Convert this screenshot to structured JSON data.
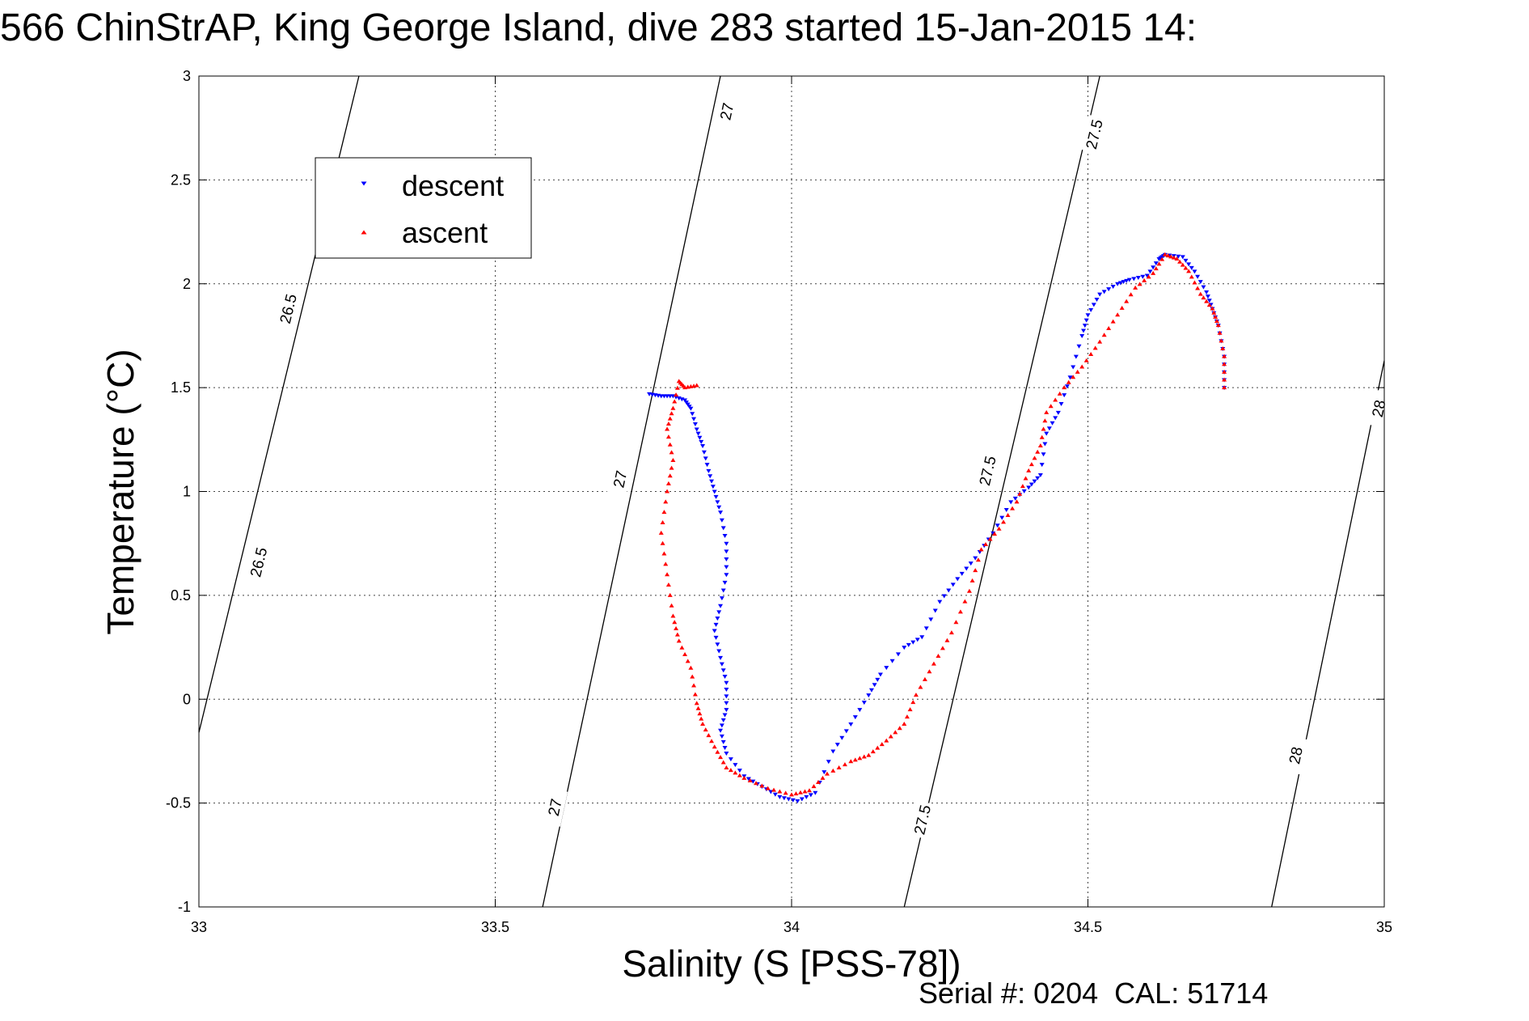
{
  "chart_data": {
    "type": "scatter",
    "title": "566 ChinStrAP, King George Island, dive 283 started 15-Jan-2015 14:",
    "xlabel": "Salinity (S [PSS-78])",
    "ylabel": "Temperature (°C)",
    "xlim": [
      33,
      35
    ],
    "ylim": [
      -1,
      3
    ],
    "x_ticks": [
      33,
      33.5,
      34,
      34.5,
      35
    ],
    "y_ticks": [
      -1,
      -0.5,
      0,
      0.5,
      1,
      1.5,
      2,
      2.5,
      3
    ],
    "x_tick_labels": [
      "33",
      "33.5",
      "34",
      "34.5",
      "35"
    ],
    "y_tick_labels": [
      "-1",
      "-0.5",
      "0",
      "0.5",
      "1",
      "1.5",
      "2",
      "2.5",
      "3"
    ],
    "grid": true,
    "legend_position": "top-left",
    "footer": "Serial #: 0204  CAL: 51714",
    "series": [
      {
        "name": "descent",
        "color": "#0000ff",
        "marker": "triangle-down",
        "points": [
          [
            33.76,
            1.47
          ],
          [
            33.78,
            1.46
          ],
          [
            33.8,
            1.46
          ],
          [
            33.82,
            1.44
          ],
          [
            33.83,
            1.4
          ],
          [
            33.84,
            1.3
          ],
          [
            33.85,
            1.22
          ],
          [
            33.86,
            1.1
          ],
          [
            33.87,
            1.0
          ],
          [
            33.88,
            0.9
          ],
          [
            33.89,
            0.75
          ],
          [
            33.89,
            0.6
          ],
          [
            33.88,
            0.45
          ],
          [
            33.87,
            0.33
          ],
          [
            33.88,
            0.2
          ],
          [
            33.89,
            0.08
          ],
          [
            33.89,
            -0.05
          ],
          [
            33.88,
            -0.15
          ],
          [
            33.89,
            -0.26
          ],
          [
            33.92,
            -0.37
          ],
          [
            33.95,
            -0.42
          ],
          [
            33.98,
            -0.47
          ],
          [
            34.01,
            -0.49
          ],
          [
            34.04,
            -0.45
          ],
          [
            34.07,
            -0.25
          ],
          [
            34.1,
            -0.12
          ],
          [
            34.13,
            0.02
          ],
          [
            34.15,
            0.12
          ],
          [
            34.19,
            0.25
          ],
          [
            34.22,
            0.3
          ],
          [
            34.25,
            0.47
          ],
          [
            34.28,
            0.58
          ],
          [
            34.31,
            0.68
          ],
          [
            34.34,
            0.8
          ],
          [
            34.37,
            0.95
          ],
          [
            34.4,
            1.02
          ],
          [
            34.42,
            1.08
          ],
          [
            34.43,
            1.28
          ],
          [
            34.45,
            1.38
          ],
          [
            34.47,
            1.55
          ],
          [
            34.49,
            1.75
          ],
          [
            34.5,
            1.85
          ],
          [
            34.52,
            1.95
          ],
          [
            34.55,
            2.0
          ],
          [
            34.57,
            2.02
          ],
          [
            34.6,
            2.04
          ],
          [
            34.62,
            2.12
          ],
          [
            34.63,
            2.14
          ],
          [
            34.66,
            2.13
          ],
          [
            34.68,
            2.06
          ],
          [
            34.7,
            1.96
          ],
          [
            34.71,
            1.88
          ],
          [
            34.72,
            1.8
          ],
          [
            34.73,
            1.65
          ],
          [
            34.73,
            1.5
          ]
        ]
      },
      {
        "name": "ascent",
        "color": "#ff0000",
        "marker": "triangle-up",
        "points": [
          [
            34.73,
            1.5
          ],
          [
            34.73,
            1.65
          ],
          [
            34.72,
            1.8
          ],
          [
            34.71,
            1.88
          ],
          [
            34.69,
            1.95
          ],
          [
            34.67,
            2.06
          ],
          [
            34.65,
            2.12
          ],
          [
            34.63,
            2.14
          ],
          [
            34.61,
            2.05
          ],
          [
            34.58,
            1.98
          ],
          [
            34.55,
            1.85
          ],
          [
            34.52,
            1.72
          ],
          [
            34.49,
            1.6
          ],
          [
            34.46,
            1.5
          ],
          [
            34.43,
            1.38
          ],
          [
            34.42,
            1.22
          ],
          [
            34.4,
            1.1
          ],
          [
            34.38,
            0.95
          ],
          [
            34.35,
            0.82
          ],
          [
            34.32,
            0.72
          ],
          [
            34.3,
            0.52
          ],
          [
            34.27,
            0.32
          ],
          [
            34.24,
            0.17
          ],
          [
            34.21,
            0.02
          ],
          [
            34.19,
            -0.12
          ],
          [
            34.16,
            -0.2
          ],
          [
            34.13,
            -0.27
          ],
          [
            34.1,
            -0.3
          ],
          [
            34.06,
            -0.36
          ],
          [
            34.03,
            -0.44
          ],
          [
            34.0,
            -0.46
          ],
          [
            33.96,
            -0.43
          ],
          [
            33.92,
            -0.38
          ],
          [
            33.89,
            -0.33
          ],
          [
            33.87,
            -0.23
          ],
          [
            33.85,
            -0.12
          ],
          [
            33.84,
            -0.02
          ],
          [
            33.83,
            0.15
          ],
          [
            33.81,
            0.28
          ],
          [
            33.8,
            0.4
          ],
          [
            33.79,
            0.6
          ],
          [
            33.78,
            0.8
          ],
          [
            33.79,
            1.0
          ],
          [
            33.8,
            1.15
          ],
          [
            33.79,
            1.3
          ],
          [
            33.8,
            1.4
          ],
          [
            33.81,
            1.53
          ],
          [
            33.82,
            1.5
          ],
          [
            33.84,
            1.51
          ]
        ]
      }
    ],
    "contours": [
      {
        "level": "26.5",
        "points": [
          [
            33.0,
            -0.16
          ],
          [
            33.27,
            3.0
          ]
        ],
        "labels": [
          [
            33.1,
            0.66
          ],
          [
            33.15,
            1.88
          ]
        ]
      },
      {
        "level": "27",
        "points": [
          [
            33.58,
            -1.0
          ],
          [
            33.88,
            3.0
          ]
        ],
        "labels": [
          [
            33.6,
            -0.52
          ],
          [
            33.71,
            1.06
          ],
          [
            33.89,
            2.83
          ]
        ]
      },
      {
        "level": "27.5",
        "points": [
          [
            34.19,
            -1.0
          ],
          [
            34.52,
            3.0
          ]
        ],
        "labels": [
          [
            34.22,
            -0.58
          ],
          [
            34.33,
            1.1
          ],
          [
            34.51,
            2.72
          ]
        ]
      },
      {
        "level": "28",
        "points": [
          [
            34.81,
            -1.0
          ],
          [
            35.0,
            1.63
          ]
        ],
        "labels": [
          [
            34.85,
            -0.27
          ],
          [
            34.99,
            1.4
          ]
        ]
      }
    ]
  }
}
